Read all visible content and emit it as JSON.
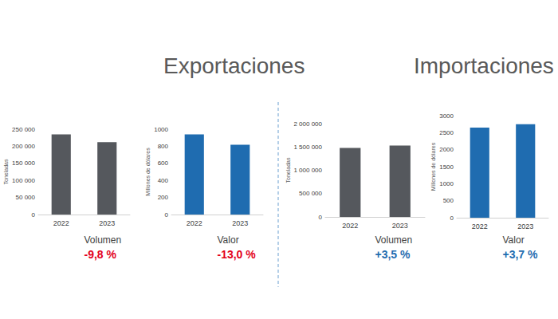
{
  "headings": [
    "Exportaciones",
    "Importaciones"
  ],
  "chart_data": [
    {
      "type": "bar",
      "categories": [
        "2022",
        "2023"
      ],
      "values": [
        235000,
        212000
      ],
      "color": "#55585d",
      "ylabel": "Toneladas",
      "xlabel": "Volumen",
      "annotation": {
        "text": "-9,8 %",
        "color": "#e3001b"
      },
      "ylim": [
        0,
        250000
      ],
      "yticks": [
        0,
        {
          "value": 50000,
          "label": "50 000"
        },
        {
          "value": 100000,
          "label": "100 000"
        },
        {
          "value": 150000,
          "label": "150 000"
        },
        {
          "value": 200000,
          "label": "200 000"
        },
        {
          "value": 250000,
          "label": "250 000"
        }
      ],
      "grid": false
    },
    {
      "type": "bar",
      "categories": [
        "2022",
        "2023"
      ],
      "values": [
        940,
        818
      ],
      "color": "#1f6cb0",
      "ylabel": "Millones de dólares",
      "xlabel": "Valor",
      "annotation": {
        "text": "-13,0 %",
        "color": "#e3001b"
      },
      "ylim": [
        0,
        1000
      ],
      "yticks": [
        0,
        200,
        400,
        600,
        800,
        1000
      ],
      "grid": false
    },
    {
      "type": "bar",
      "categories": [
        "2022",
        "2023"
      ],
      "values": [
        1480000,
        1532000
      ],
      "color": "#55585d",
      "ylabel": "Toneladas",
      "xlabel": "Volumen",
      "annotation": {
        "text": "+3,5 %",
        "color": "#1f6cb0"
      },
      "ylim": [
        0,
        2000000
      ],
      "yticks": [
        0,
        {
          "value": 500000,
          "label": "500 000"
        },
        {
          "value": 1000000,
          "label": "1 000 000"
        },
        {
          "value": 1500000,
          "label": "1 500 000"
        },
        {
          "value": 2000000,
          "label": "2 000 000"
        }
      ],
      "grid": false
    },
    {
      "type": "bar",
      "categories": [
        "2022",
        "2023"
      ],
      "values": [
        2650,
        2748
      ],
      "color": "#1f6cb0",
      "ylabel": "Millones de dólares",
      "xlabel": "Valor",
      "annotation": {
        "text": "+3,7 %",
        "color": "#1f6cb0"
      },
      "ylim": [
        0,
        3000
      ],
      "yticks": [
        0,
        500,
        1000,
        1500,
        2000,
        2500,
        3000
      ],
      "grid": false
    }
  ]
}
